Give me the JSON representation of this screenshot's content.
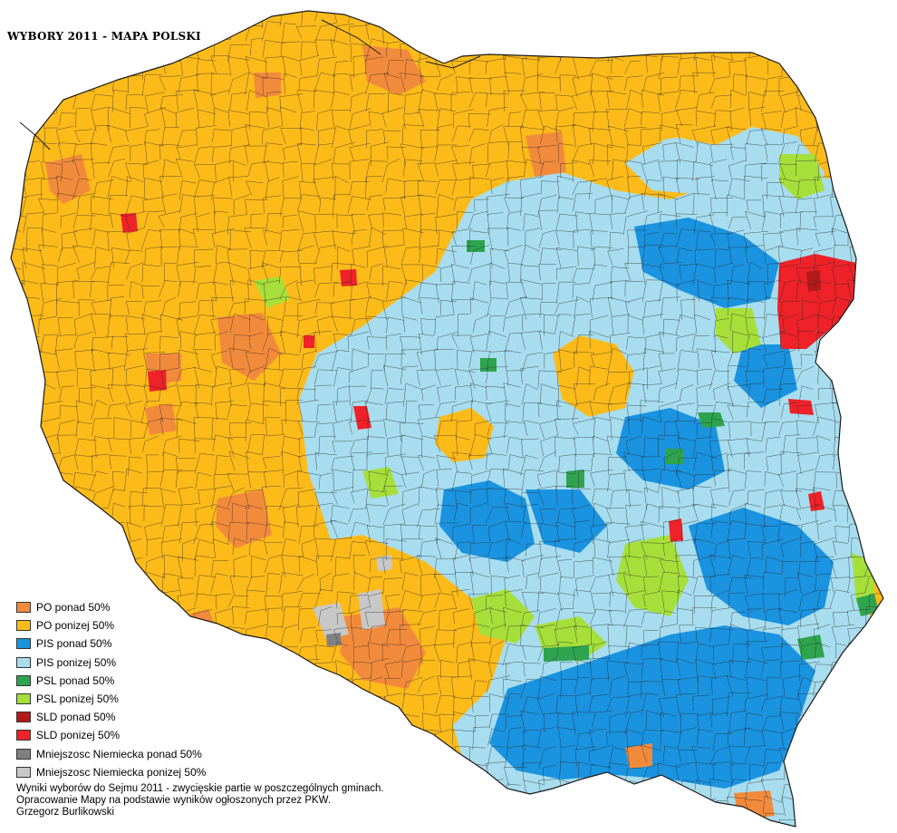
{
  "title": "WYBORY 2011 - MAPA POLSKI",
  "colors": {
    "po_over": "#f28a3c",
    "po_under": "#fdbb1a",
    "pis_over": "#1a93e0",
    "pis_under": "#a7ddef",
    "psl_over": "#2ea44f",
    "psl_under": "#a6df3a",
    "sld_over": "#b51a1a",
    "sld_under": "#ee2228",
    "mn_over": "#808080",
    "mn_under": "#c8c8c8",
    "border": "#2a2a2a",
    "sea": "#ffffff"
  },
  "legend": [
    {
      "label": "PO ponad 50%",
      "color": "#f28a3c"
    },
    {
      "label": "PO ponizej 50%",
      "color": "#fdbb1a"
    },
    {
      "label": "PIS ponad 50%",
      "color": "#1a93e0"
    },
    {
      "label": "PIS ponizej 50%",
      "color": "#a7ddef"
    },
    {
      "label": "PSL ponad 50%",
      "color": "#2ea44f"
    },
    {
      "label": "PSL ponizej 50%",
      "color": "#a6df3a"
    },
    {
      "label": "SLD ponad 50%",
      "color": "#b51a1a"
    },
    {
      "label": "SLD ponizej 50%",
      "color": "#ee2228"
    },
    {
      "label": "Mniejszosc Niemiecka ponad 50%",
      "color": "#808080"
    },
    {
      "label": "Mniejszosc Niemiecka ponizej 50%",
      "color": "#c8c8c8"
    }
  ],
  "credits": {
    "line1": "Wyniki wyborów do Sejmu 2011 - zwycięskie partie w poszczególnych gminach.",
    "line2": "Opracowanie Mapy na podstawie wyników ogłoszonych przez PKW.",
    "line3": "Grzegorz Burlikowski"
  }
}
